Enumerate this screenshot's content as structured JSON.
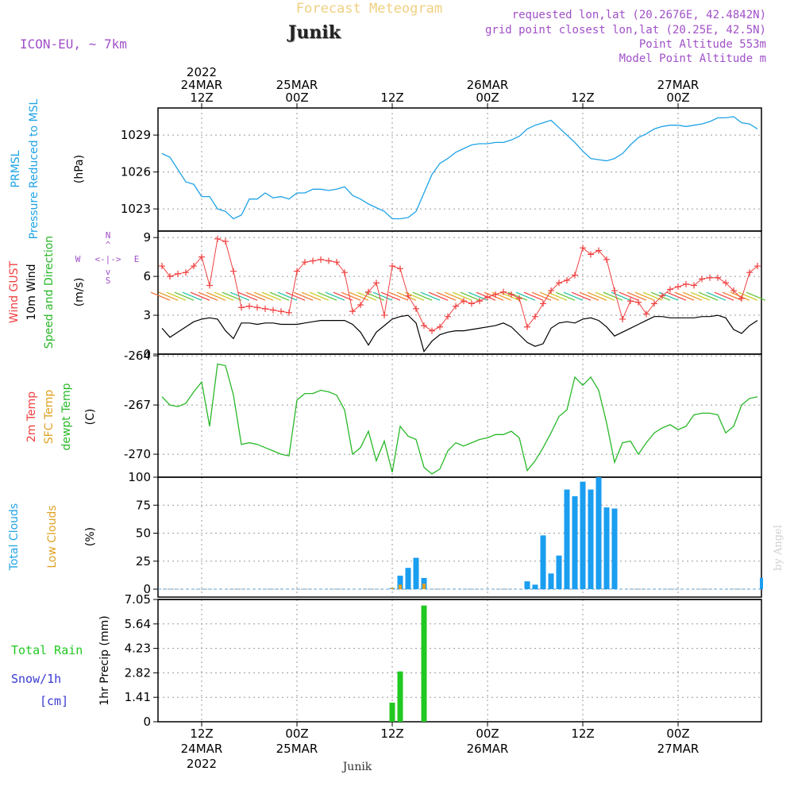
{
  "header": {
    "title": "Forecast Meteogram",
    "location": "Junik",
    "model": "ICON-EU, ~ 7km",
    "requested": "requested lon,lat (20.2676E, 42.4842N)",
    "grid_point": "grid point closest lon,lat (20.25E, 42.5N)",
    "point_altitude": "Point Altitude 553m",
    "model_altitude": "Model Point Altitude m"
  },
  "footer": {
    "location": "Junik",
    "credit": "by Angel"
  },
  "colors": {
    "pressure": "#1fa3e6",
    "gust": "#f04040",
    "wind": "#000000",
    "dewpt": "#28b828",
    "total_clouds": "#1a9ef0",
    "low_clouds": "#e0a020",
    "rain": "#22c822",
    "snow": "#3a3ad0",
    "header": "#a050c8",
    "title": "#f0d080",
    "grid": "#9a9a9a"
  },
  "time_axis": {
    "top_labels": [
      {
        "hour": 12,
        "lines": [
          "2022",
          "24MAR",
          "12Z"
        ]
      },
      {
        "hour": 24,
        "lines": [
          "25MAR",
          "00Z"
        ]
      },
      {
        "hour": 36,
        "lines": [
          "12Z"
        ]
      },
      {
        "hour": 48,
        "lines": [
          "26MAR",
          "00Z"
        ]
      },
      {
        "hour": 60,
        "lines": [
          "12Z"
        ]
      },
      {
        "hour": 72,
        "lines": [
          "27MAR",
          "00Z"
        ]
      }
    ],
    "bottom_labels": [
      {
        "hour": 12,
        "lines": [
          "12Z",
          "24MAR",
          "2022"
        ]
      },
      {
        "hour": 24,
        "lines": [
          "00Z",
          "25MAR"
        ]
      },
      {
        "hour": 36,
        "lines": [
          "12Z"
        ]
      },
      {
        "hour": 48,
        "lines": [
          "00Z",
          "26MAR"
        ]
      },
      {
        "hour": 60,
        "lines": [
          "12Z"
        ]
      },
      {
        "hour": 72,
        "lines": [
          "00Z",
          "27MAR"
        ]
      }
    ],
    "x_range_hours": [
      6.5,
      82.5
    ]
  },
  "panels": {
    "pressure": {
      "label_lines": [
        "PRMSL",
        "Pressure Reduced to MSL"
      ],
      "unit": "(hPa)",
      "yticks": [
        "1023",
        "1026",
        "1029"
      ]
    },
    "wind": {
      "label_gust": "Wind GUST",
      "label_wind": "10m Wind",
      "label_dir": "Speed and Direction",
      "unit": "(m/s)",
      "yticks": [
        "0",
        "3",
        "6",
        "9"
      ],
      "compass": {
        "n": "N",
        "s": "S",
        "w": "W",
        "e": "E",
        "arrows": "<-|->"
      }
    },
    "temp": {
      "label_2m": "2m Temp",
      "label_sfc": "SFC Temp",
      "label_dew": "dewpt Temp",
      "unit": "(C)",
      "yticks": [
        "-270",
        "-267",
        "-264"
      ]
    },
    "clouds": {
      "label_total": "Total Clouds",
      "label_low": "Low Clouds",
      "unit": "(%)",
      "yticks": [
        "0",
        "25",
        "50",
        "75",
        "100"
      ]
    },
    "precip": {
      "label_rain": "Total  Rain",
      "label_snow": "Snow/1h",
      "label_snow_unit": "[cm]",
      "unit": "1hr Precip (mm)",
      "yticks": [
        "0",
        "1.41",
        "2.82",
        "4.23",
        "5.64",
        "7.05"
      ]
    }
  },
  "chart_data": [
    {
      "type": "line",
      "title": "PRMSL Pressure Reduced to MSL",
      "ylabel": "hPa",
      "ylim": [
        1021.2,
        1031.2
      ],
      "x_hours": [
        7,
        8,
        9,
        10,
        11,
        12,
        13,
        14,
        15,
        16,
        17,
        18,
        19,
        20,
        21,
        22,
        23,
        24,
        25,
        26,
        27,
        28,
        29,
        30,
        31,
        32,
        33,
        34,
        35,
        36,
        37,
        38,
        39,
        40,
        41,
        42,
        43,
        44,
        45,
        46,
        47,
        48,
        49,
        50,
        51,
        52,
        53,
        54,
        55,
        56,
        57,
        58,
        59,
        60,
        61,
        62,
        63,
        64,
        65,
        66,
        67,
        68,
        69,
        70,
        71,
        72,
        73,
        74,
        75,
        76,
        77,
        78,
        79,
        80,
        81,
        82
      ],
      "values": [
        1027.5,
        1027.2,
        1026.2,
        1025.2,
        1025.0,
        1024.0,
        1024.0,
        1023.0,
        1022.8,
        1022.2,
        1022.5,
        1023.8,
        1023.8,
        1024.3,
        1023.9,
        1024.0,
        1023.8,
        1024.3,
        1024.3,
        1024.6,
        1024.6,
        1024.5,
        1024.6,
        1024.8,
        1024.1,
        1023.8,
        1023.4,
        1023.1,
        1022.8,
        1022.2,
        1022.2,
        1022.3,
        1022.8,
        1024.3,
        1025.8,
        1026.7,
        1027.1,
        1027.6,
        1027.9,
        1028.2,
        1028.3,
        1028.3,
        1028.4,
        1028.4,
        1028.6,
        1028.9,
        1029.5,
        1029.8,
        1030.0,
        1030.2,
        1029.6,
        1029.0,
        1028.4,
        1027.7,
        1027.1,
        1027.0,
        1026.9,
        1027.1,
        1027.5,
        1028.2,
        1028.8,
        1029.1,
        1029.5,
        1029.7,
        1029.8,
        1029.8,
        1029.7,
        1029.8,
        1029.9,
        1030.1,
        1030.4,
        1030.4,
        1030.5,
        1030.0,
        1029.9,
        1029.5
      ],
      "series_color": "#1fa3e6"
    },
    {
      "type": "line",
      "title": "Wind GUST / 10m Wind Speed and Direction",
      "ylabel": "m/s",
      "ylim": [
        0,
        9.5
      ],
      "x_hours": [
        7,
        8,
        9,
        10,
        11,
        12,
        13,
        14,
        15,
        16,
        17,
        18,
        19,
        20,
        21,
        22,
        23,
        24,
        25,
        26,
        27,
        28,
        29,
        30,
        31,
        32,
        33,
        34,
        35,
        36,
        37,
        38,
        39,
        40,
        41,
        42,
        43,
        44,
        45,
        46,
        47,
        48,
        49,
        50,
        51,
        52,
        53,
        54,
        55,
        56,
        57,
        58,
        59,
        60,
        61,
        62,
        63,
        64,
        65,
        66,
        67,
        68,
        69,
        70,
        71,
        72,
        73,
        74,
        75,
        76,
        77,
        78,
        79,
        80,
        81,
        82
      ],
      "series": [
        {
          "name": "Wind GUST",
          "values": [
            6.8,
            6.0,
            6.2,
            6.3,
            6.8,
            7.5,
            5.3,
            8.9,
            8.7,
            6.4,
            3.6,
            3.7,
            3.6,
            3.5,
            3.4,
            3.3,
            3.2,
            6.4,
            7.1,
            7.2,
            7.3,
            7.2,
            7.1,
            6.3,
            3.3,
            3.8,
            4.8,
            5.5,
            3.0,
            6.8,
            6.6,
            4.5,
            3.5,
            2.2,
            1.8,
            2.1,
            2.9,
            3.7,
            4.1,
            3.9,
            4.1,
            4.4,
            4.6,
            4.8,
            4.6,
            4.3,
            2.1,
            2.9,
            3.9,
            4.9,
            5.5,
            5.7,
            6.1,
            8.2,
            7.7,
            8.0,
            7.3,
            4.9,
            2.7,
            4.1,
            4.0,
            3.1,
            3.9,
            4.5,
            5.0,
            5.2,
            5.4,
            5.3,
            5.8,
            5.9,
            5.9,
            5.5,
            4.9,
            4.3,
            6.3,
            6.8
          ]
        },
        {
          "name": "10m Wind",
          "values": [
            2.0,
            1.3,
            1.7,
            2.1,
            2.5,
            2.7,
            2.8,
            2.7,
            1.8,
            1.2,
            2.4,
            2.4,
            2.3,
            2.4,
            2.4,
            2.3,
            2.3,
            2.3,
            2.4,
            2.5,
            2.6,
            2.6,
            2.6,
            2.6,
            2.3,
            1.7,
            0.7,
            1.7,
            2.2,
            2.7,
            2.9,
            3.0,
            2.4,
            0.2,
            1.0,
            1.5,
            1.7,
            1.8,
            1.8,
            1.9,
            2.0,
            2.1,
            2.2,
            2.4,
            2.1,
            1.5,
            0.9,
            0.6,
            0.8,
            2.0,
            2.4,
            2.5,
            2.4,
            2.7,
            2.8,
            2.6,
            2.1,
            1.4,
            1.7,
            2.0,
            2.3,
            2.6,
            2.9,
            2.9,
            2.8,
            2.8,
            2.8,
            2.8,
            2.9,
            2.9,
            3.0,
            2.8,
            1.9,
            1.6,
            2.2,
            2.6
          ]
        }
      ]
    },
    {
      "type": "line",
      "title": "2m Temp / SFC Temp / dewpt Temp",
      "ylabel": "C",
      "ylim": [
        -271.4,
        -263.9
      ],
      "x_hours": [
        7,
        8,
        9,
        10,
        11,
        12,
        13,
        14,
        15,
        16,
        17,
        18,
        19,
        20,
        21,
        22,
        23,
        24,
        25,
        26,
        27,
        28,
        29,
        30,
        31,
        32,
        33,
        34,
        35,
        36,
        37,
        38,
        39,
        40,
        41,
        42,
        43,
        44,
        45,
        46,
        47,
        48,
        49,
        50,
        51,
        52,
        53,
        54,
        55,
        56,
        57,
        58,
        59,
        60,
        61,
        62,
        63,
        64,
        65,
        66,
        67,
        68,
        69,
        70,
        71,
        72,
        73,
        74,
        75,
        76,
        77,
        78,
        79,
        80,
        81,
        82
      ],
      "series": [
        {
          "name": "dewpt Temp",
          "values": [
            -266.5,
            -267.0,
            -267.1,
            -266.9,
            -266.2,
            -265.6,
            -268.3,
            -264.5,
            -264.6,
            -266.4,
            -269.4,
            -269.3,
            -269.4,
            -269.6,
            -269.8,
            -270.0,
            -270.1,
            -266.7,
            -266.3,
            -266.3,
            -266.1,
            -266.2,
            -266.4,
            -267.3,
            -270.0,
            -269.6,
            -268.6,
            -270.4,
            -269.2,
            -271.1,
            -268.3,
            -268.9,
            -269.1,
            -270.8,
            -271.2,
            -270.9,
            -269.8,
            -269.3,
            -269.5,
            -269.3,
            -269.1,
            -269.0,
            -268.8,
            -268.8,
            -268.6,
            -269.0,
            -271.0,
            -270.4,
            -269.6,
            -268.7,
            -267.7,
            -267.3,
            -265.3,
            -265.8,
            -265.3,
            -266.1,
            -268.1,
            -270.5,
            -269.3,
            -269.2,
            -270.0,
            -269.3,
            -268.7,
            -268.4,
            -268.2,
            -268.5,
            -268.3,
            -267.6,
            -267.5,
            -267.5,
            -267.6,
            -268.7,
            -268.3,
            -267.0,
            -266.6,
            -266.5
          ]
        }
      ]
    },
    {
      "type": "bar",
      "title": "Total Clouds / Low Clouds",
      "ylabel": "%",
      "ylim": [
        0,
        100
      ],
      "series": [
        {
          "name": "Total Clouds",
          "x_hours": [
            36,
            37,
            38,
            39,
            40,
            53,
            54,
            55,
            56,
            57,
            58,
            59,
            60,
            61,
            62,
            63,
            64,
            65,
            82.5
          ],
          "values": [
            1,
            12,
            19,
            28,
            10,
            7,
            4,
            48,
            14,
            30,
            89,
            83,
            96,
            89,
            100,
            73,
            72,
            0,
            10
          ]
        },
        {
          "name": "Low Clouds",
          "x_hours": [
            36,
            37,
            40
          ],
          "values": [
            1,
            4,
            5
          ]
        }
      ]
    },
    {
      "type": "bar",
      "title": "1hr Precip",
      "ylabel": "1hr Precip (mm)",
      "ylim": [
        0,
        7.05
      ],
      "series": [
        {
          "name": "Total Rain",
          "x_hours": [
            36,
            37,
            40
          ],
          "values": [
            1.1,
            2.9,
            6.7
          ]
        }
      ]
    }
  ]
}
